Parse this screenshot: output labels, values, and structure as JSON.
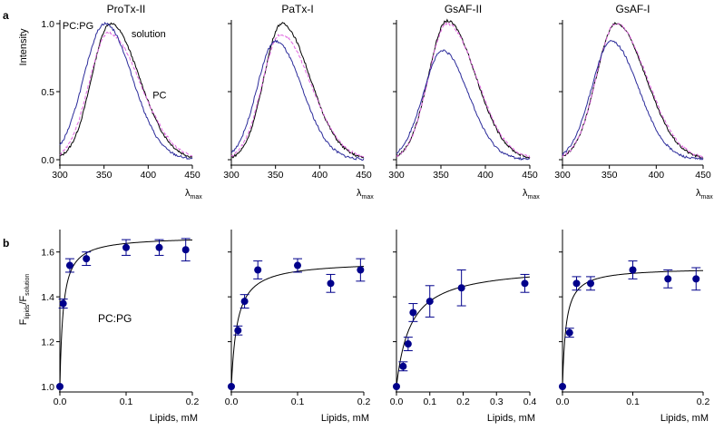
{
  "figure": {
    "panel_a_label": "a",
    "panel_b_label": "b"
  },
  "row_a": {
    "ylabel": "Intensity",
    "xlabel_main": "λ",
    "xlabel_sub": "max",
    "xlim": [
      300,
      450
    ],
    "ylim": [
      0,
      1.0
    ],
    "xticks": [
      "300",
      "350",
      "400",
      "450"
    ],
    "yticks": [
      "0.0",
      "0.5",
      "1.0"
    ],
    "colors": {
      "solution": "#000000",
      "pc": "#e066e0",
      "pcpg": "#2b2b9a"
    }
  },
  "row_b": {
    "ylabel_main": "F",
    "ylabel_sub1": "lipids",
    "ylabel_sep": "/F",
    "ylabel_sub2": "solution",
    "xlabel": "Lipids, mM",
    "ylim": [
      1.0,
      1.7
    ],
    "yticks": [
      "1.0",
      "1.2",
      "1.4",
      "1.6"
    ],
    "marker_color": "#00008b",
    "curve_color": "#000000",
    "annotation": "PC:PG"
  },
  "chart_data": [
    {
      "type": "line",
      "title": "ProTx-II",
      "xlabel": "λmax",
      "ylabel": "Intensity",
      "xlim": [
        300,
        450
      ],
      "ylim": [
        0,
        1.0
      ],
      "series": [
        {
          "name": "solution",
          "peak_x": 357,
          "peak_y": 1.0,
          "sigma_left": 21,
          "sigma_right": 33
        },
        {
          "name": "PC",
          "peak_x": 355,
          "peak_y": 0.93,
          "sigma_left": 22,
          "sigma_right": 36,
          "dashed": true
        },
        {
          "name": "PC:PG",
          "peak_x": 351,
          "peak_y": 1.0,
          "sigma_left": 24,
          "sigma_right": 31
        }
      ],
      "labels": {
        "solution": "solution",
        "pc": "PC",
        "pcpg": "PC:PG"
      }
    },
    {
      "type": "line",
      "title": "PaTx-I",
      "xlabel": "λmax",
      "ylabel": "Intensity",
      "xlim": [
        300,
        450
      ],
      "ylim": [
        0,
        1.0
      ],
      "series": [
        {
          "name": "solution",
          "peak_x": 357,
          "peak_y": 1.0,
          "sigma_left": 20,
          "sigma_right": 32
        },
        {
          "name": "PC",
          "peak_x": 356,
          "peak_y": 0.92,
          "sigma_left": 21,
          "sigma_right": 34,
          "dashed": true
        },
        {
          "name": "PC:PG",
          "peak_x": 350,
          "peak_y": 0.87,
          "sigma_left": 21,
          "sigma_right": 30
        }
      ]
    },
    {
      "type": "line",
      "title": "GsAF-II",
      "xlabel": "λmax",
      "ylabel": "Intensity",
      "xlim": [
        300,
        450
      ],
      "ylim": [
        0,
        1.0
      ],
      "series": [
        {
          "name": "solution",
          "peak_x": 357,
          "peak_y": 1.02,
          "sigma_left": 21,
          "sigma_right": 32
        },
        {
          "name": "PC",
          "peak_x": 357,
          "peak_y": 1.0,
          "sigma_left": 21,
          "sigma_right": 33,
          "dashed": true
        },
        {
          "name": "PC:PG",
          "peak_x": 352,
          "peak_y": 0.8,
          "sigma_left": 22,
          "sigma_right": 29
        }
      ]
    },
    {
      "type": "line",
      "title": "GsAF-I",
      "xlabel": "λmax",
      "ylabel": "Intensity",
      "xlim": [
        300,
        450
      ],
      "ylim": [
        0,
        1.0
      ],
      "series": [
        {
          "name": "solution",
          "peak_x": 357,
          "peak_y": 1.0,
          "sigma_left": 21,
          "sigma_right": 32
        },
        {
          "name": "PC",
          "peak_x": 357,
          "peak_y": 1.0,
          "sigma_left": 21,
          "sigma_right": 33,
          "dashed": true
        },
        {
          "name": "PC:PG",
          "peak_x": 352,
          "peak_y": 0.87,
          "sigma_left": 21,
          "sigma_right": 29
        }
      ]
    },
    {
      "type": "scatter",
      "xlabel": "Lipids, mM",
      "ylabel": "Flipids/Fsolution",
      "xlim": [
        0,
        0.2
      ],
      "ylim": [
        1.0,
        1.7
      ],
      "xticks": [
        "0.0",
        "0.1",
        "0.2"
      ],
      "x": [
        0.0,
        0.005,
        0.015,
        0.04,
        0.1,
        0.15,
        0.19
      ],
      "y": [
        1.0,
        1.37,
        1.54,
        1.57,
        1.62,
        1.62,
        1.61
      ],
      "err": [
        0,
        0.02,
        0.03,
        0.03,
        0.035,
        0.035,
        0.05
      ],
      "fit": {
        "bmax": 0.67,
        "kd": 0.005
      }
    },
    {
      "type": "scatter",
      "xlabel": "Lipids, mM",
      "ylabel": "Flipids/Fsolution",
      "xlim": [
        0,
        0.2
      ],
      "ylim": [
        1.0,
        1.7
      ],
      "xticks": [
        "0.0",
        "0.1",
        "0.2"
      ],
      "x": [
        0.0,
        0.01,
        0.02,
        0.04,
        0.1,
        0.15,
        0.195
      ],
      "y": [
        1.0,
        1.25,
        1.38,
        1.52,
        1.54,
        1.46,
        1.52
      ],
      "err": [
        0,
        0.02,
        0.03,
        0.04,
        0.03,
        0.04,
        0.05
      ],
      "fit": {
        "bmax": 0.56,
        "kd": 0.009
      }
    },
    {
      "type": "scatter",
      "xlabel": "Lipids, mM",
      "ylabel": "Flipids/Fsolution",
      "xlim": [
        0,
        0.4
      ],
      "ylim": [
        1.0,
        1.7
      ],
      "xticks": [
        "0.0",
        "0.1",
        "0.2",
        "0.3",
        "0.4"
      ],
      "x": [
        0.0,
        0.02,
        0.035,
        0.05,
        0.1,
        0.195,
        0.385
      ],
      "y": [
        1.0,
        1.09,
        1.19,
        1.33,
        1.38,
        1.44,
        1.46
      ],
      "err": [
        0,
        0.02,
        0.03,
        0.04,
        0.07,
        0.08,
        0.04
      ],
      "fit": {
        "bmax": 0.54,
        "kd": 0.042
      }
    },
    {
      "type": "scatter",
      "xlabel": "Lipids, mM",
      "ylabel": "Flipids/Fsolution",
      "xlim": [
        0,
        0.2
      ],
      "ylim": [
        1.0,
        1.7
      ],
      "xticks": [
        "0.0",
        "0.1",
        "0.2"
      ],
      "x": [
        0.0,
        0.01,
        0.02,
        0.04,
        0.1,
        0.15,
        0.19
      ],
      "y": [
        1.0,
        1.24,
        1.46,
        1.46,
        1.52,
        1.48,
        1.48
      ],
      "err": [
        0,
        0.02,
        0.03,
        0.03,
        0.04,
        0.04,
        0.05
      ],
      "fit": {
        "bmax": 0.53,
        "kd": 0.005
      }
    }
  ]
}
